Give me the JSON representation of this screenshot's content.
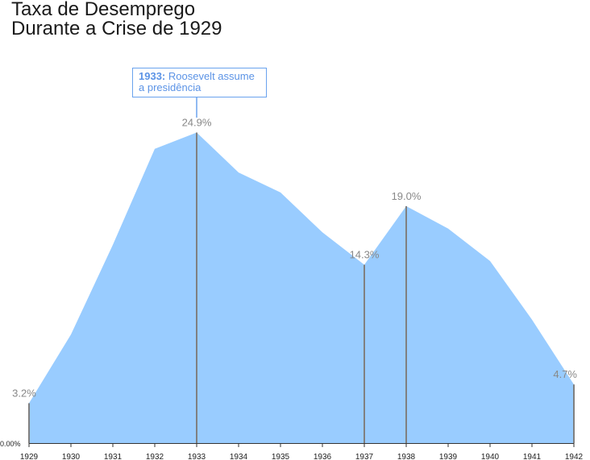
{
  "title": {
    "line1": "Taxa de Desemprego",
    "line2": "Durante a Crise de 1929"
  },
  "annotation": {
    "year": "1933",
    "separator": ":",
    "text": " Roosevelt assume a presidência"
  },
  "colors": {
    "area": "#99ccff",
    "marker": "#808080",
    "label": "#888888",
    "annotation": "#5b93e6"
  },
  "chart_data": {
    "type": "area",
    "title": "Taxa de Desemprego Durante a Crise de 1929",
    "x": [
      1929,
      1930,
      1931,
      1932,
      1933,
      1934,
      1935,
      1936,
      1937,
      1938,
      1939,
      1940,
      1941,
      1942
    ],
    "series": [
      {
        "values": [
          3.2,
          8.7,
          15.9,
          23.6,
          24.9,
          21.7,
          20.1,
          16.9,
          14.3,
          19.0,
          17.2,
          14.6,
          9.9,
          4.7
        ]
      }
    ],
    "ylim": [
      0,
      25
    ],
    "y_tick_labels": [
      "0.00%"
    ],
    "x_tick_labels": [
      "1929",
      "1930",
      "1931",
      "1932",
      "1933",
      "1934",
      "1935",
      "1936",
      "1937",
      "1938",
      "1939",
      "1940",
      "1941",
      "1942"
    ],
    "highlighted_points": [
      {
        "year": 1929,
        "label": "3.2%"
      },
      {
        "year": 1933,
        "label": "24.9%"
      },
      {
        "year": 1937,
        "label": "14.3%"
      },
      {
        "year": 1938,
        "label": "19.0%"
      },
      {
        "year": 1942,
        "label": "4.7%"
      }
    ],
    "annotations": [
      {
        "year": 1933,
        "text": "1933: Roosevelt assume a presidência"
      }
    ],
    "grid": false
  }
}
